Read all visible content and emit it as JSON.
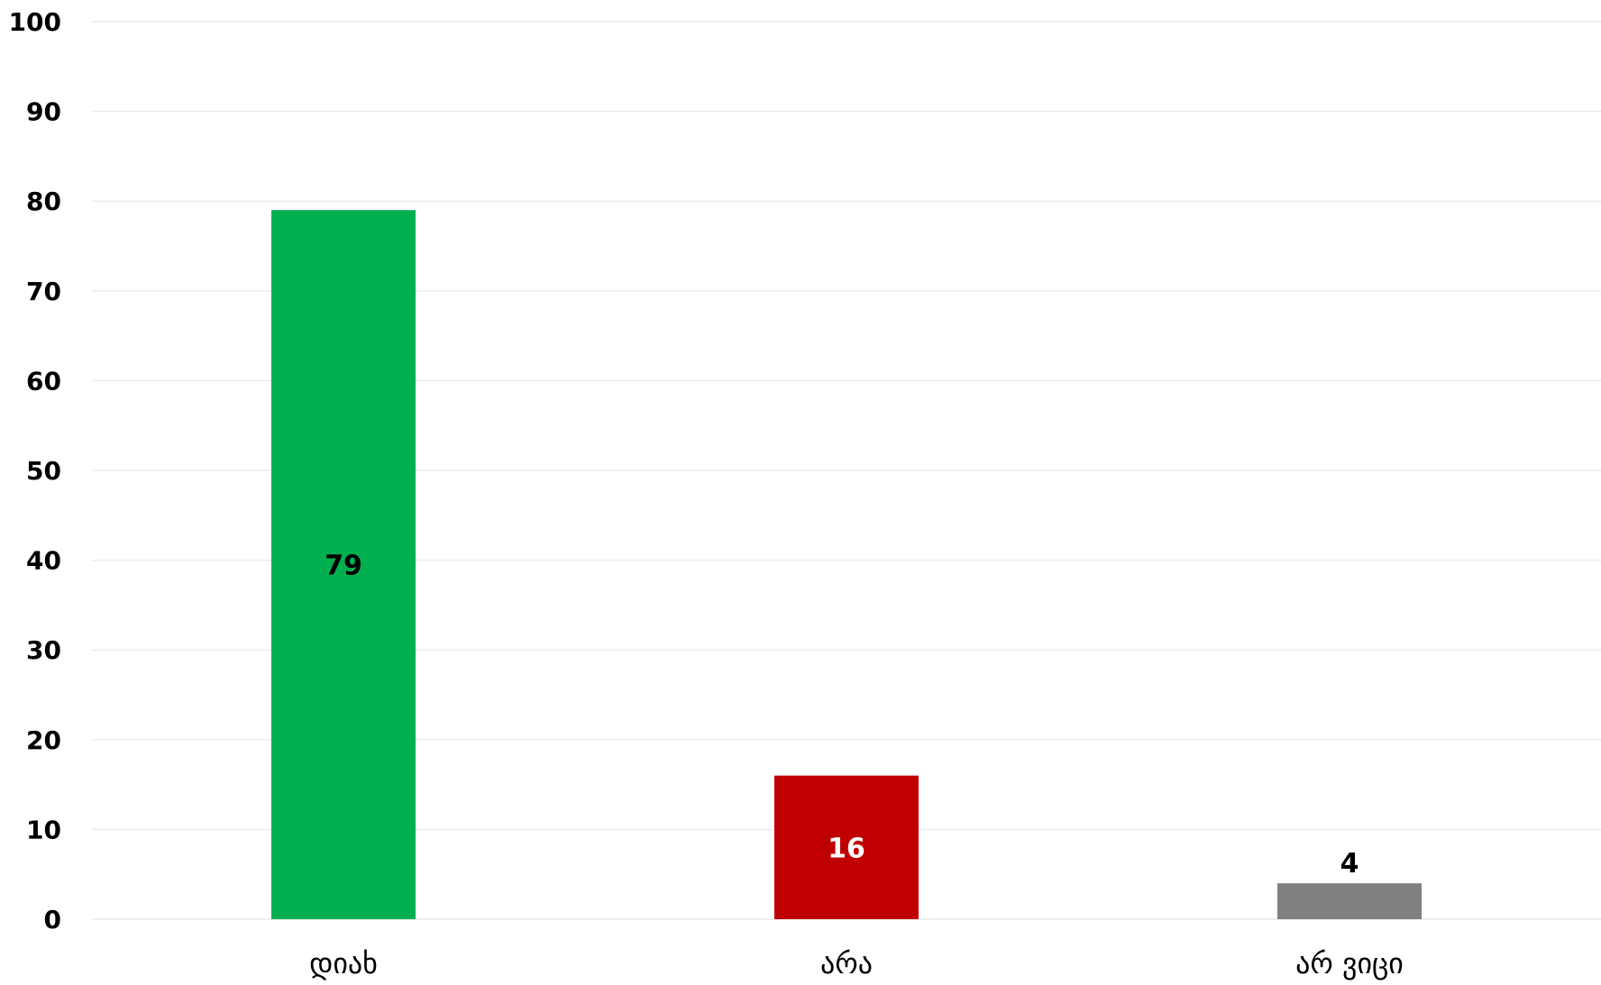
{
  "chart_data": {
    "type": "bar",
    "title": "",
    "xlabel": "",
    "ylabel": "",
    "categories": [
      "დიახ",
      "არა",
      "არ ვიცი"
    ],
    "values": [
      79,
      16,
      4
    ],
    "colors": [
      "#00b050",
      "#c00000",
      "#808080"
    ],
    "data_label_colors": [
      "#000000",
      "#ffffff",
      "#000000"
    ],
    "data_label_positions": [
      "center",
      "center",
      "above"
    ],
    "ylim": [
      0,
      100
    ],
    "yticks": [
      "0",
      "10",
      "20",
      "30",
      "40",
      "50",
      "60",
      "70",
      "80",
      "90",
      "100"
    ],
    "grid": true,
    "legend": "none"
  }
}
